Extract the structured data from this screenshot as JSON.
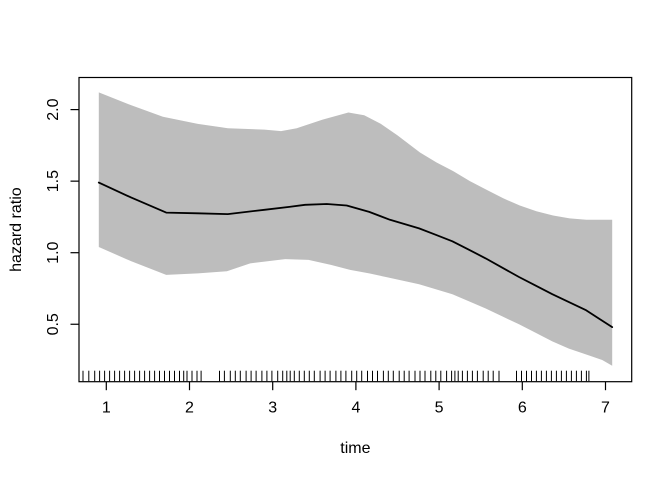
{
  "chart_data": {
    "type": "line",
    "title": "",
    "xlabel": "time",
    "ylabel": "hazard ratio",
    "x_ticks": [
      1,
      2,
      3,
      4,
      5,
      6,
      7
    ],
    "x_tick_labels": [
      "1",
      "2",
      "3",
      "4",
      "5",
      "6",
      "7"
    ],
    "y_ticks": [
      0.5,
      1.0,
      1.5,
      2.0
    ],
    "y_tick_labels": [
      "0.5",
      "1.0",
      "1.5",
      "2.0"
    ],
    "xlim": [
      0.67,
      7.33
    ],
    "ylim": [
      0.1,
      2.22
    ],
    "grid": false,
    "legend_position": "none",
    "band_color": "#bdbdbd",
    "line_color": "#000000",
    "axis_color": "#000000",
    "series": [
      {
        "name": "estimate",
        "style": "line",
        "x": [
          0.91,
          1.3,
          1.72,
          2.1,
          2.46,
          2.9,
          3.2,
          3.39,
          3.65,
          3.89,
          4.16,
          4.41,
          4.76,
          4.96,
          5.16,
          5.36,
          5.56,
          5.76,
          5.96,
          6.16,
          6.36,
          6.56,
          6.76,
          6.92,
          7.08
        ],
        "y": [
          1.49,
          1.385,
          1.28,
          1.275,
          1.27,
          1.3,
          1.32,
          1.335,
          1.34,
          1.33,
          1.285,
          1.23,
          1.17,
          1.125,
          1.08,
          1.02,
          0.96,
          0.895,
          0.83,
          0.77,
          0.71,
          0.655,
          0.6,
          0.54,
          0.48
        ]
      },
      {
        "name": "ci-upper",
        "style": "band-upper",
        "x": [
          0.91,
          1.3,
          1.68,
          2.1,
          2.46,
          2.9,
          3.1,
          3.29,
          3.6,
          3.91,
          4.1,
          4.3,
          4.5,
          4.77,
          4.97,
          5.17,
          5.37,
          5.57,
          5.77,
          5.97,
          6.17,
          6.37,
          6.57,
          6.77,
          6.95,
          7.08
        ],
        "y": [
          2.12,
          2.03,
          1.95,
          1.9,
          1.87,
          1.86,
          1.85,
          1.87,
          1.93,
          1.98,
          1.96,
          1.9,
          1.82,
          1.7,
          1.63,
          1.57,
          1.5,
          1.44,
          1.38,
          1.33,
          1.29,
          1.26,
          1.24,
          1.23,
          1.23,
          1.23
        ],
        "description": "upper edge of gray confidence band"
      },
      {
        "name": "ci-lower",
        "style": "band-lower",
        "x": [
          0.91,
          1.3,
          1.72,
          2.1,
          2.45,
          2.73,
          3.15,
          3.43,
          3.7,
          3.93,
          4.16,
          4.36,
          4.56,
          4.76,
          4.96,
          5.16,
          5.36,
          5.56,
          5.76,
          5.96,
          6.16,
          6.36,
          6.56,
          6.76,
          6.96,
          7.08
        ],
        "y": [
          1.04,
          0.94,
          0.845,
          0.855,
          0.87,
          0.925,
          0.955,
          0.95,
          0.915,
          0.88,
          0.855,
          0.83,
          0.805,
          0.78,
          0.745,
          0.71,
          0.66,
          0.61,
          0.555,
          0.5,
          0.44,
          0.38,
          0.33,
          0.29,
          0.25,
          0.21
        ],
        "description": "lower edge of gray confidence band"
      }
    ],
    "rug_x": [
      0.72,
      0.79,
      0.86,
      0.92,
      0.98,
      1.04,
      1.1,
      1.16,
      1.22,
      1.28,
      1.34,
      1.4,
      1.46,
      1.52,
      1.58,
      1.64,
      1.7,
      1.76,
      1.82,
      1.88,
      1.93,
      1.97,
      2.03,
      2.09,
      2.14,
      2.36,
      2.42,
      2.49,
      2.55,
      2.61,
      2.68,
      2.74,
      2.8,
      2.87,
      2.93,
      2.99,
      3.06,
      3.12,
      3.17,
      3.21,
      3.26,
      3.32,
      3.38,
      3.44,
      3.5,
      3.57,
      3.63,
      3.69,
      3.76,
      3.82,
      3.88,
      3.95,
      4.01,
      4.07,
      4.14,
      4.2,
      4.26,
      4.33,
      4.39,
      4.45,
      4.52,
      4.58,
      4.64,
      4.71,
      4.77,
      4.83,
      4.9,
      4.96,
      5.02,
      5.09,
      5.15,
      5.19,
      5.23,
      5.28,
      5.34,
      5.4,
      5.46,
      5.53,
      5.59,
      5.65,
      5.72,
      5.93,
      5.99,
      6.05,
      6.11,
      6.17,
      6.23,
      6.29,
      6.35,
      6.41,
      6.47,
      6.53,
      6.59,
      6.65,
      6.71,
      6.77,
      6.8
    ]
  }
}
